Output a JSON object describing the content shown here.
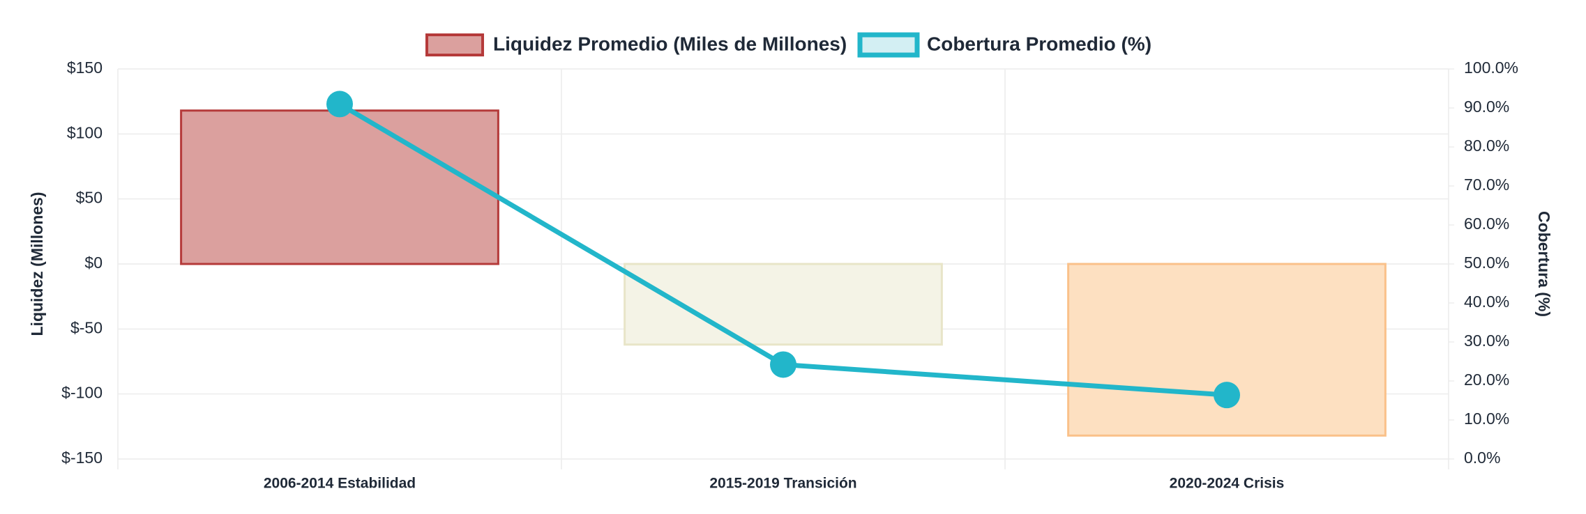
{
  "chart_data": {
    "type": "bar-line",
    "categories": [
      "2006-2014 Estabilidad",
      "2015-2019 Transición",
      "2020-2024 Crisis"
    ],
    "series": [
      {
        "name": "Liquidez Promedio (Miles de Millones)",
        "type": "bar",
        "values": [
          118,
          -62,
          -132
        ],
        "colors": [
          "#b53a3a",
          "#e8e5c8",
          "#fac18a"
        ],
        "fills": [
          "#dba09e",
          "#f4f3e6",
          "#fde0c1"
        ]
      },
      {
        "name": "Cobertura Promedio (%)",
        "type": "line",
        "axis": "y2",
        "values": [
          91,
          24.2,
          16.4
        ],
        "color": "#22b6ca"
      }
    ],
    "ylabel": "Liquidez (Millones)",
    "y2label": "Cobertura (%)",
    "ylim": [
      -150,
      150
    ],
    "yticks": [
      {
        "value": -150,
        "label": "$-150"
      },
      {
        "value": -100,
        "label": "$-100"
      },
      {
        "value": -50,
        "label": "$-50"
      },
      {
        "value": 0,
        "label": "$0"
      },
      {
        "value": 50,
        "label": "$50"
      },
      {
        "value": 100,
        "label": "$100"
      },
      {
        "value": 150,
        "label": "$150"
      }
    ],
    "y2lim": [
      0,
      100
    ],
    "y2ticks": [
      {
        "value": 0,
        "label": "0.0%"
      },
      {
        "value": 10,
        "label": "10.0%"
      },
      {
        "value": 20,
        "label": "20.0%"
      },
      {
        "value": 30,
        "label": "30.0%"
      },
      {
        "value": 40,
        "label": "40.0%"
      },
      {
        "value": 50,
        "label": "50.0%"
      },
      {
        "value": 60,
        "label": "60.0%"
      },
      {
        "value": 70,
        "label": "70.0%"
      },
      {
        "value": 80,
        "label": "80.0%"
      },
      {
        "value": 90,
        "label": "90.0%"
      },
      {
        "value": 100,
        "label": "100.0%"
      }
    ],
    "grid": true,
    "legend": "top"
  }
}
